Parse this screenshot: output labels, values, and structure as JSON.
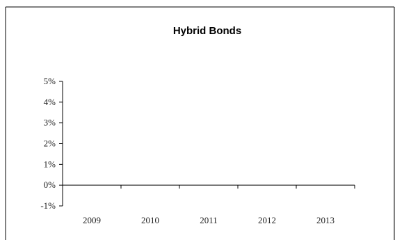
{
  "chart_data": {
    "type": "line",
    "title": "Hybrid Bonds",
    "xlabel": "",
    "ylabel": "",
    "categories": [
      "2009",
      "2010",
      "2011",
      "2012",
      "2013"
    ],
    "y_ticks": [
      "5%",
      "4%",
      "3%",
      "2%",
      "1%",
      "0%",
      "-1%"
    ],
    "ylim": [
      -1,
      5
    ],
    "series": [],
    "grid": false,
    "legend": "none"
  }
}
